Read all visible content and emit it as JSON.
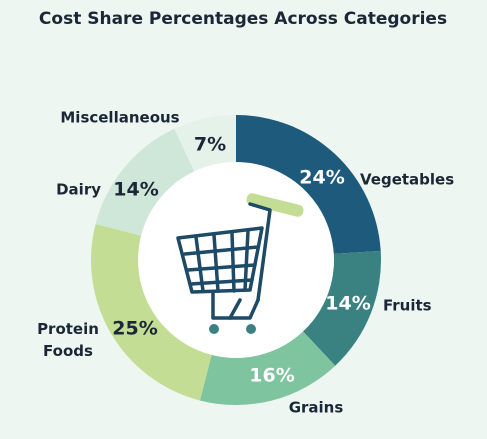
{
  "chart_data": {
    "type": "donut",
    "title": "Cost Share Percentages Across Categories",
    "categories": [
      "Vegetables",
      "Fruits",
      "Grains",
      "Protein Foods",
      "Dairy",
      "Miscellaneous"
    ],
    "values": [
      24,
      14,
      16,
      25,
      14,
      7
    ],
    "value_labels": [
      "24%",
      "14%",
      "16%",
      "25%",
      "14%",
      "7%"
    ],
    "colors": [
      "#1d5a7c",
      "#3a8282",
      "#7dc49f",
      "#c3dd95",
      "#cfe7d9",
      "#e5f2e9"
    ]
  }
}
